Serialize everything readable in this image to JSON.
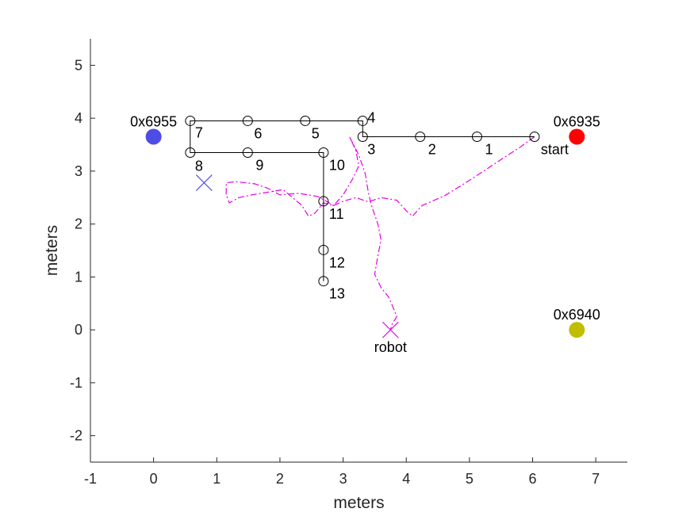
{
  "chart_data": {
    "type": "scatter",
    "xlabel": "meters",
    "ylabel": "meters",
    "xlim": [
      -1,
      7.5
    ],
    "ylim": [
      -2.5,
      5.5
    ],
    "xticks": [
      "-1",
      "0",
      "1",
      "2",
      "3",
      "4",
      "5",
      "6",
      "7"
    ],
    "yticks": [
      "-2",
      "-1",
      "0",
      "1",
      "2",
      "3",
      "4",
      "5"
    ],
    "grid": false,
    "anchors": [
      {
        "label": "0x6955",
        "x": 0.0,
        "y": 3.65,
        "color": "#4d4de6"
      },
      {
        "label": "0x6935",
        "x": 6.7,
        "y": 3.65,
        "color": "#ff0000"
      },
      {
        "label": "0x6940",
        "x": 6.7,
        "y": 0.0,
        "color": "#bfbf00"
      }
    ],
    "waypoints": [
      {
        "label": "start",
        "x": 6.03,
        "y": 3.65
      },
      {
        "label": "1",
        "x": 5.12,
        "y": 3.65
      },
      {
        "label": "2",
        "x": 4.22,
        "y": 3.65
      },
      {
        "label": "3",
        "x": 3.31,
        "y": 3.65
      },
      {
        "label": "4",
        "x": 3.31,
        "y": 3.95
      },
      {
        "label": "5",
        "x": 2.4,
        "y": 3.95
      },
      {
        "label": "6",
        "x": 1.49,
        "y": 3.95
      },
      {
        "label": "7",
        "x": 0.58,
        "y": 3.95
      },
      {
        "label": "8",
        "x": 0.58,
        "y": 3.35
      },
      {
        "label": "9",
        "x": 1.49,
        "y": 3.35
      },
      {
        "label": "10",
        "x": 2.69,
        "y": 3.35
      },
      {
        "label": "11",
        "x": 2.69,
        "y": 2.43
      },
      {
        "label": "12",
        "x": 2.69,
        "y": 1.51
      },
      {
        "label": "13",
        "x": 2.69,
        "y": 0.92
      }
    ],
    "robot": {
      "label": "robot",
      "x": 3.75,
      "y": 0.0,
      "color": "#e600e6"
    },
    "estimate_marker": {
      "x": 0.8,
      "y": 2.78,
      "color": "#4d4de6"
    },
    "trajectory": {
      "color": "#e600e6",
      "points": [
        [
          6.03,
          3.65
        ],
        [
          5.8,
          3.45
        ],
        [
          5.5,
          3.22
        ],
        [
          5.2,
          2.98
        ],
        [
          4.9,
          2.75
        ],
        [
          4.6,
          2.53
        ],
        [
          4.25,
          2.35
        ],
        [
          4.1,
          2.15
        ],
        [
          4.0,
          2.25
        ],
        [
          3.85,
          2.45
        ],
        [
          3.6,
          2.5
        ],
        [
          3.4,
          2.42
        ],
        [
          3.2,
          2.5
        ],
        [
          3.0,
          2.43
        ],
        [
          2.85,
          2.35
        ],
        [
          2.69,
          2.4
        ],
        [
          2.55,
          2.2
        ],
        [
          2.45,
          2.15
        ],
        [
          2.35,
          2.35
        ],
        [
          2.2,
          2.5
        ],
        [
          2.05,
          2.65
        ],
        [
          1.8,
          2.6
        ],
        [
          1.55,
          2.55
        ],
        [
          1.35,
          2.5
        ],
        [
          1.2,
          2.4
        ],
        [
          1.15,
          2.55
        ],
        [
          1.15,
          2.78
        ],
        [
          1.3,
          2.8
        ],
        [
          1.6,
          2.76
        ],
        [
          1.8,
          2.68
        ],
        [
          2.0,
          2.55
        ],
        [
          2.3,
          2.58
        ],
        [
          2.6,
          2.52
        ],
        [
          2.75,
          2.42
        ],
        [
          2.85,
          2.35
        ],
        [
          3.0,
          2.55
        ],
        [
          3.15,
          2.85
        ],
        [
          3.25,
          3.1
        ],
        [
          3.2,
          3.4
        ],
        [
          3.1,
          3.65
        ],
        [
          3.25,
          3.3
        ],
        [
          3.35,
          2.95
        ],
        [
          3.4,
          2.6
        ],
        [
          3.45,
          2.35
        ],
        [
          3.55,
          2.0
        ],
        [
          3.6,
          1.7
        ],
        [
          3.55,
          1.4
        ],
        [
          3.5,
          1.05
        ],
        [
          3.6,
          0.8
        ],
        [
          3.72,
          0.62
        ],
        [
          3.8,
          0.4
        ],
        [
          3.85,
          0.25
        ],
        [
          3.78,
          0.12
        ],
        [
          3.75,
          0.0
        ]
      ]
    }
  }
}
